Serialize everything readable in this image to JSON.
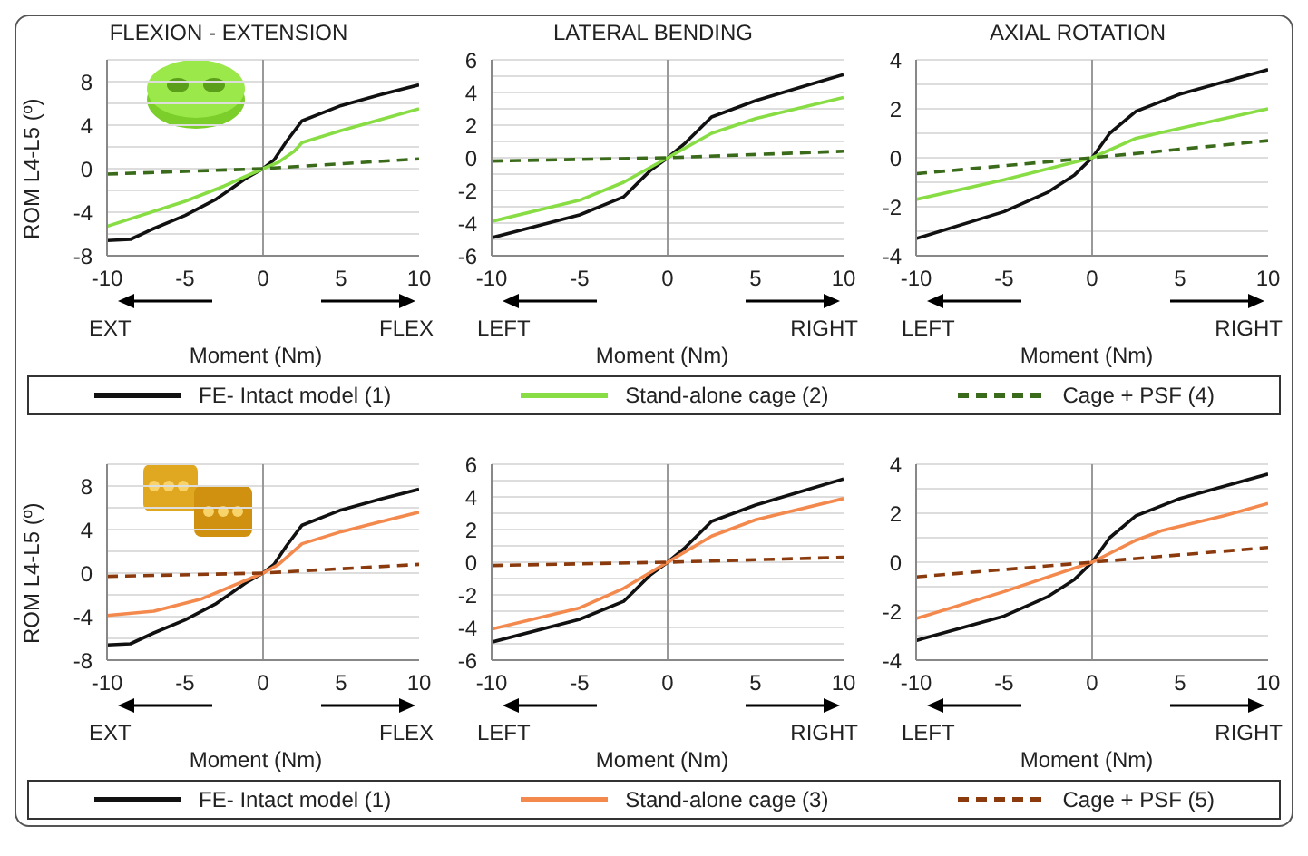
{
  "chart_data": [
    {
      "type": "line",
      "title": "FLEXION - EXTENSION",
      "xlabel": "Moment (Nm)",
      "ylabel": "ROM L4-L5 (º)",
      "xlim": [
        -10,
        10
      ],
      "xticks": [
        -10,
        -5,
        0,
        5,
        10
      ],
      "ylim": [
        -8,
        10
      ],
      "yticks": [
        -8,
        {
          "value": -6,
          "label": null
        },
        -4,
        {
          "value": -2,
          "label": null
        },
        0,
        {
          "value": 2,
          "label": null
        },
        4,
        {
          "value": 6,
          "label": null
        },
        8,
        {
          "value": 10,
          "label": null
        }
      ],
      "grid": "y",
      "legend": "bottom",
      "annotations": [
        "EXT",
        "FLEX"
      ],
      "ref_lines": [
        {
          "axis": "x",
          "value": 0,
          "color": "#999999"
        }
      ],
      "series": [
        {
          "name": "FE- Intact model (1)",
          "color": "#111111",
          "x": [
            -10,
            -8.5,
            -7,
            -5,
            -3,
            -1,
            0,
            0.7,
            1.5,
            2.5,
            5,
            7.5,
            10
          ],
          "values": [
            -6.6,
            -6.5,
            -5.5,
            -4.3,
            -2.8,
            -0.8,
            0,
            0.8,
            2.5,
            4.4,
            5.8,
            6.8,
            7.7
          ]
        },
        {
          "name": "Stand-alone cage (2)",
          "color": "#88dd44",
          "x": [
            -10,
            -5,
            -2.5,
            0,
            1,
            2,
            2.5,
            5,
            7.5,
            10
          ],
          "values": [
            -5.3,
            -3,
            -1.6,
            0,
            0.6,
            1.6,
            2.4,
            3.5,
            4.5,
            5.5
          ]
        },
        {
          "name": "Cage + PSF (4)",
          "color": "#3a6b1a",
          "line_style": "dashed",
          "x": [
            -10,
            0,
            10
          ],
          "values": [
            -0.5,
            0,
            0.9
          ]
        }
      ]
    },
    {
      "type": "line",
      "title": "LATERAL BENDING",
      "xlabel": "Moment (Nm)",
      "xlim": [
        -10,
        10
      ],
      "xticks": [
        -10,
        -5,
        0,
        5,
        10
      ],
      "ylim": [
        -6,
        6
      ],
      "yticks": [
        -6,
        {
          "value": -5,
          "label": null
        },
        -4,
        {
          "value": -3,
          "label": null
        },
        -2,
        {
          "value": -1,
          "label": null
        },
        0,
        {
          "value": 1,
          "label": null
        },
        2,
        {
          "value": 3,
          "label": null
        },
        4,
        {
          "value": 5,
          "label": null
        },
        6
      ],
      "grid": "y",
      "annotations": [
        "LEFT",
        "RIGHT"
      ],
      "ref_lines": [
        {
          "axis": "x",
          "value": 0,
          "color": "#999999"
        }
      ],
      "series": [
        {
          "color": "#111111",
          "x": [
            -10,
            -5,
            -2.5,
            -1,
            0,
            1,
            2.5,
            5,
            7.5,
            10
          ],
          "values": [
            -4.9,
            -3.5,
            -2.4,
            -0.8,
            0,
            0.9,
            2.5,
            3.5,
            4.3,
            5.1
          ]
        },
        {
          "color": "#88dd44",
          "x": [
            -10,
            -5,
            -2.5,
            0,
            2.5,
            5,
            10
          ],
          "values": [
            -3.9,
            -2.6,
            -1.5,
            0,
            1.5,
            2.4,
            3.7
          ]
        },
        {
          "color": "#3a6b1a",
          "line_style": "dashed",
          "x": [
            -10,
            0,
            10
          ],
          "values": [
            -0.2,
            0,
            0.4
          ]
        }
      ]
    },
    {
      "type": "line",
      "title": "AXIAL ROTATION",
      "xlabel": "Moment (Nm)",
      "xlim": [
        -10,
        10
      ],
      "xticks": [
        -10,
        -5,
        0,
        5,
        10
      ],
      "ylim": [
        -4,
        4
      ],
      "yticks": [
        -4,
        {
          "value": -3,
          "label": null
        },
        -2,
        {
          "value": -1,
          "label": null
        },
        0,
        {
          "value": 1,
          "label": null
        },
        2,
        {
          "value": 3,
          "label": null
        },
        4
      ],
      "grid": "y",
      "annotations": [
        "LEFT",
        "RIGHT"
      ],
      "ref_lines": [
        {
          "axis": "x",
          "value": 0,
          "color": "#999999"
        }
      ],
      "series": [
        {
          "color": "#111111",
          "x": [
            -10,
            -5,
            -2.5,
            -1,
            0,
            1,
            2.5,
            5,
            7.5,
            10
          ],
          "values": [
            -3.3,
            -2.2,
            -1.4,
            -0.7,
            0,
            1,
            1.9,
            2.6,
            3.1,
            3.6
          ]
        },
        {
          "color": "#88dd44",
          "x": [
            -10,
            -5,
            0,
            2.5,
            5,
            10
          ],
          "values": [
            -1.7,
            -0.9,
            0,
            0.8,
            1.2,
            2
          ]
        },
        {
          "color": "#3a6b1a",
          "line_style": "dashed",
          "x": [
            -10,
            0,
            10
          ],
          "values": [
            -0.65,
            0,
            0.7
          ]
        }
      ]
    },
    {
      "type": "line",
      "xlabel": "Moment (Nm)",
      "ylabel": "ROM L4-L5 (º)",
      "xlim": [
        -10,
        10
      ],
      "xticks": [
        -10,
        -5,
        0,
        5,
        10
      ],
      "ylim": [
        -8,
        10
      ],
      "yticks": [
        -8,
        {
          "value": -6,
          "label": null
        },
        -4,
        {
          "value": -2,
          "label": null
        },
        0,
        {
          "value": 2,
          "label": null
        },
        4,
        {
          "value": 6,
          "label": null
        },
        8,
        {
          "value": 10,
          "label": null
        }
      ],
      "grid": "y",
      "legend": "bottom",
      "annotations": [
        "EXT",
        "FLEX"
      ],
      "ref_lines": [
        {
          "axis": "x",
          "value": 0,
          "color": "#999999"
        }
      ],
      "series": [
        {
          "name": "FE- Intact model (1)",
          "color": "#111111",
          "x": [
            -10,
            -8.5,
            -7,
            -5,
            -3,
            -1,
            0,
            0.7,
            1.5,
            2.5,
            5,
            7.5,
            10
          ],
          "values": [
            -6.6,
            -6.5,
            -5.5,
            -4.3,
            -2.8,
            -0.8,
            0,
            0.8,
            2.5,
            4.4,
            5.8,
            6.8,
            7.7
          ]
        },
        {
          "name": "Stand-alone cage (3)",
          "color": "#f4894e",
          "x": [
            -10,
            -7,
            -4,
            -2,
            0,
            1,
            2.5,
            5,
            7.5,
            10
          ],
          "values": [
            -3.9,
            -3.5,
            -2.4,
            -1.2,
            0,
            0.8,
            2.7,
            3.8,
            4.7,
            5.6
          ]
        },
        {
          "name": "Cage + PSF (5)",
          "color": "#8b3a0e",
          "line_style": "dashed",
          "x": [
            -10,
            0,
            10
          ],
          "values": [
            -0.3,
            0,
            0.8
          ]
        }
      ]
    },
    {
      "type": "line",
      "xlabel": "Moment (Nm)",
      "xlim": [
        -10,
        10
      ],
      "xticks": [
        -10,
        -5,
        0,
        5,
        10
      ],
      "ylim": [
        -6,
        6
      ],
      "yticks": [
        -6,
        {
          "value": -5,
          "label": null
        },
        -4,
        {
          "value": -3,
          "label": null
        },
        -2,
        {
          "value": -1,
          "label": null
        },
        0,
        {
          "value": 1,
          "label": null
        },
        2,
        {
          "value": 3,
          "label": null
        },
        4,
        {
          "value": 5,
          "label": null
        },
        6
      ],
      "grid": "y",
      "annotations": [
        "LEFT",
        "RIGHT"
      ],
      "ref_lines": [
        {
          "axis": "x",
          "value": 0,
          "color": "#999999"
        }
      ],
      "series": [
        {
          "color": "#111111",
          "x": [
            -10,
            -5,
            -2.5,
            -1,
            0,
            1,
            2.5,
            5,
            7.5,
            10
          ],
          "values": [
            -4.9,
            -3.5,
            -2.4,
            -0.8,
            0,
            0.9,
            2.5,
            3.5,
            4.3,
            5.1
          ]
        },
        {
          "color": "#f4894e",
          "x": [
            -10,
            -5,
            -2.5,
            0,
            2.5,
            5,
            10
          ],
          "values": [
            -4.1,
            -2.8,
            -1.6,
            0,
            1.6,
            2.6,
            3.9
          ]
        },
        {
          "color": "#8b3a0e",
          "line_style": "dashed",
          "x": [
            -10,
            0,
            10
          ],
          "values": [
            -0.2,
            0,
            0.3
          ]
        }
      ]
    },
    {
      "type": "line",
      "xlabel": "Moment (Nm)",
      "xlim": [
        -10,
        10
      ],
      "xticks": [
        -10,
        -5,
        0,
        5,
        10
      ],
      "ylim": [
        -4,
        4
      ],
      "yticks": [
        -4,
        {
          "value": -3,
          "label": null
        },
        -2,
        {
          "value": -1,
          "label": null
        },
        0,
        {
          "value": 1,
          "label": null
        },
        2,
        {
          "value": 3,
          "label": null
        },
        4
      ],
      "grid": "y",
      "annotations": [
        "LEFT",
        "RIGHT"
      ],
      "ref_lines": [
        {
          "axis": "x",
          "value": 0,
          "color": "#999999"
        }
      ],
      "series": [
        {
          "color": "#111111",
          "x": [
            -10,
            -5,
            -2.5,
            -1,
            0,
            1,
            2.5,
            5,
            7.5,
            10
          ],
          "values": [
            -3.2,
            -2.2,
            -1.4,
            -0.7,
            0,
            1,
            1.9,
            2.6,
            3.1,
            3.6
          ]
        },
        {
          "color": "#f4894e",
          "x": [
            -10,
            -5,
            0,
            2.5,
            4,
            7.5,
            10
          ],
          "values": [
            -2.3,
            -1.2,
            0,
            0.9,
            1.3,
            1.9,
            2.4
          ]
        },
        {
          "color": "#8b3a0e",
          "line_style": "dashed",
          "x": [
            -10,
            0,
            10
          ],
          "values": [
            -0.6,
            0,
            0.6
          ]
        }
      ]
    }
  ]
}
